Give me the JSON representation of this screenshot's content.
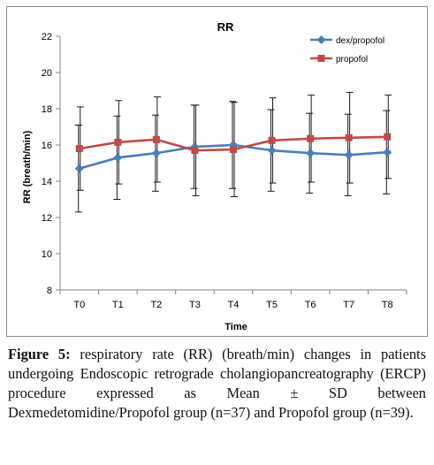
{
  "caption": {
    "label": "Figure 5:",
    "text": " respiratory rate (RR) (breath/min) changes in patients undergoing Endoscopic retrograde cholangiopancreatography (ERCP) procedure expressed as Mean ± SD between Dexmedetomidine/Propofol group (n=37) and Propofol group (n=39)."
  },
  "chart_data": {
    "type": "line",
    "title": "RR",
    "xlabel": "Time",
    "ylabel": "RR (breath/min)",
    "ylim": [
      8,
      22
    ],
    "yticks": [
      8,
      10,
      12,
      14,
      16,
      18,
      20,
      22
    ],
    "categories": [
      "T0",
      "T1",
      "T2",
      "T3",
      "T4",
      "T5",
      "T6",
      "T7",
      "T8"
    ],
    "grid": false,
    "legend_position": "top-right",
    "series": [
      {
        "name": "dex/propofol",
        "color": "#4a7ebb",
        "marker": "diamond",
        "values": [
          14.7,
          15.3,
          15.55,
          15.9,
          16.0,
          15.7,
          15.55,
          15.45,
          15.6
        ],
        "sd": [
          2.4,
          2.3,
          2.1,
          2.3,
          2.4,
          2.25,
          2.2,
          2.25,
          2.3
        ]
      },
      {
        "name": "propofol",
        "color": "#be4b48",
        "marker": "square",
        "values": [
          15.8,
          16.15,
          16.3,
          15.7,
          15.75,
          16.25,
          16.35,
          16.4,
          16.45
        ],
        "sd": [
          2.3,
          2.3,
          2.35,
          2.5,
          2.6,
          2.35,
          2.4,
          2.5,
          2.3
        ]
      }
    ]
  }
}
